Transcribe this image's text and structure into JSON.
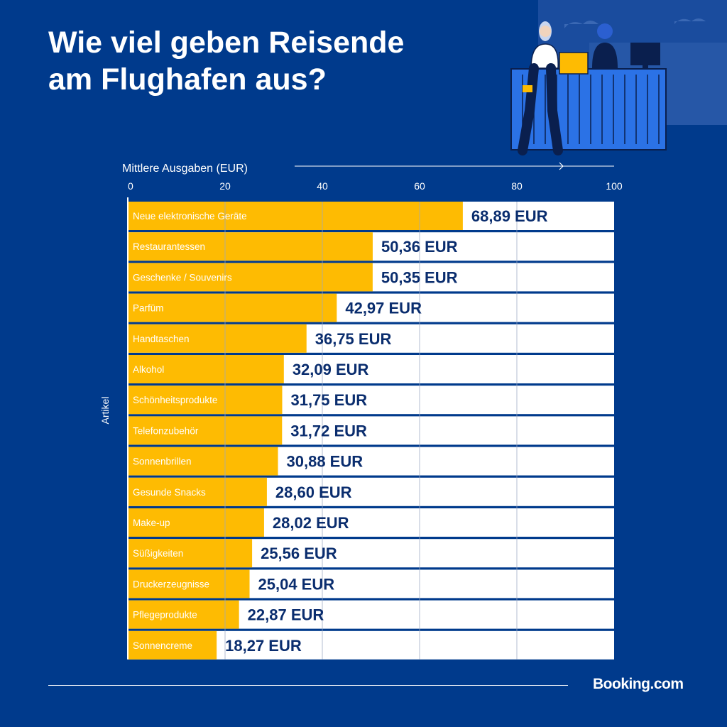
{
  "title": {
    "line1": "Wie viel geben Reisende",
    "line2": "am Flughafen aus?"
  },
  "brand": "Booking.com",
  "colors": {
    "background": "#003a8c",
    "bar": "#febb02",
    "track": "#ffffff",
    "value_label": "#0a2d6e"
  },
  "chart_data": {
    "type": "bar",
    "orientation": "horizontal",
    "xlabel": "Mittlere Ausgaben (EUR)",
    "ylabel": "Artikel",
    "xlim": [
      0,
      100
    ],
    "xticks": [
      0,
      20,
      40,
      60,
      80,
      100
    ],
    "grid": true,
    "categories": [
      "Neue elektronische Geräte",
      "Restaurantessen",
      "Geschenke / Souvenirs",
      "Parfüm",
      "Handtaschen",
      "Alkohol",
      "Schönheitsprodukte",
      "Telefonzubehör",
      "Sonnenbrillen",
      "Gesunde Snacks",
      "Make-up",
      "Süßigkeiten",
      "Druckerzeugnisse",
      "Pflegeprodukte",
      "Sonnencreme"
    ],
    "values": [
      68.89,
      50.36,
      50.35,
      42.97,
      36.75,
      32.09,
      31.75,
      31.72,
      30.88,
      28.6,
      28.02,
      25.56,
      25.04,
      22.87,
      18.27
    ],
    "value_labels": [
      "68,89 EUR",
      "50,36 EUR",
      "50,35 EUR",
      "42,97 EUR",
      "36,75 EUR",
      "32,09 EUR",
      "31,75 EUR",
      "31,72 EUR",
      "30,88 EUR",
      "28,60 EUR",
      "28,02 EUR",
      "25,56 EUR",
      "25,04 EUR",
      "22,87 EUR",
      "18,27 EUR"
    ]
  }
}
